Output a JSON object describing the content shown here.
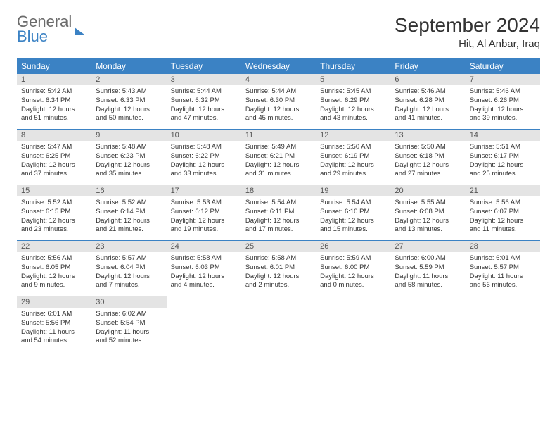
{
  "logo": {
    "line1": "General",
    "line2": "Blue"
  },
  "title": "September 2024",
  "location": "Hit, Al Anbar, Iraq",
  "colors": {
    "header_bg": "#3b82c4",
    "header_fg": "#ffffff",
    "daynum_bg": "#e4e4e4",
    "row_border": "#3b82c4"
  },
  "weekdays": [
    "Sunday",
    "Monday",
    "Tuesday",
    "Wednesday",
    "Thursday",
    "Friday",
    "Saturday"
  ],
  "days": [
    {
      "n": "1",
      "sunrise": "5:42 AM",
      "sunset": "6:34 PM",
      "dl": "12 hours and 51 minutes."
    },
    {
      "n": "2",
      "sunrise": "5:43 AM",
      "sunset": "6:33 PM",
      "dl": "12 hours and 50 minutes."
    },
    {
      "n": "3",
      "sunrise": "5:44 AM",
      "sunset": "6:32 PM",
      "dl": "12 hours and 47 minutes."
    },
    {
      "n": "4",
      "sunrise": "5:44 AM",
      "sunset": "6:30 PM",
      "dl": "12 hours and 45 minutes."
    },
    {
      "n": "5",
      "sunrise": "5:45 AM",
      "sunset": "6:29 PM",
      "dl": "12 hours and 43 minutes."
    },
    {
      "n": "6",
      "sunrise": "5:46 AM",
      "sunset": "6:28 PM",
      "dl": "12 hours and 41 minutes."
    },
    {
      "n": "7",
      "sunrise": "5:46 AM",
      "sunset": "6:26 PM",
      "dl": "12 hours and 39 minutes."
    },
    {
      "n": "8",
      "sunrise": "5:47 AM",
      "sunset": "6:25 PM",
      "dl": "12 hours and 37 minutes."
    },
    {
      "n": "9",
      "sunrise": "5:48 AM",
      "sunset": "6:23 PM",
      "dl": "12 hours and 35 minutes."
    },
    {
      "n": "10",
      "sunrise": "5:48 AM",
      "sunset": "6:22 PM",
      "dl": "12 hours and 33 minutes."
    },
    {
      "n": "11",
      "sunrise": "5:49 AM",
      "sunset": "6:21 PM",
      "dl": "12 hours and 31 minutes."
    },
    {
      "n": "12",
      "sunrise": "5:50 AM",
      "sunset": "6:19 PM",
      "dl": "12 hours and 29 minutes."
    },
    {
      "n": "13",
      "sunrise": "5:50 AM",
      "sunset": "6:18 PM",
      "dl": "12 hours and 27 minutes."
    },
    {
      "n": "14",
      "sunrise": "5:51 AM",
      "sunset": "6:17 PM",
      "dl": "12 hours and 25 minutes."
    },
    {
      "n": "15",
      "sunrise": "5:52 AM",
      "sunset": "6:15 PM",
      "dl": "12 hours and 23 minutes."
    },
    {
      "n": "16",
      "sunrise": "5:52 AM",
      "sunset": "6:14 PM",
      "dl": "12 hours and 21 minutes."
    },
    {
      "n": "17",
      "sunrise": "5:53 AM",
      "sunset": "6:12 PM",
      "dl": "12 hours and 19 minutes."
    },
    {
      "n": "18",
      "sunrise": "5:54 AM",
      "sunset": "6:11 PM",
      "dl": "12 hours and 17 minutes."
    },
    {
      "n": "19",
      "sunrise": "5:54 AM",
      "sunset": "6:10 PM",
      "dl": "12 hours and 15 minutes."
    },
    {
      "n": "20",
      "sunrise": "5:55 AM",
      "sunset": "6:08 PM",
      "dl": "12 hours and 13 minutes."
    },
    {
      "n": "21",
      "sunrise": "5:56 AM",
      "sunset": "6:07 PM",
      "dl": "12 hours and 11 minutes."
    },
    {
      "n": "22",
      "sunrise": "5:56 AM",
      "sunset": "6:05 PM",
      "dl": "12 hours and 9 minutes."
    },
    {
      "n": "23",
      "sunrise": "5:57 AM",
      "sunset": "6:04 PM",
      "dl": "12 hours and 7 minutes."
    },
    {
      "n": "24",
      "sunrise": "5:58 AM",
      "sunset": "6:03 PM",
      "dl": "12 hours and 4 minutes."
    },
    {
      "n": "25",
      "sunrise": "5:58 AM",
      "sunset": "6:01 PM",
      "dl": "12 hours and 2 minutes."
    },
    {
      "n": "26",
      "sunrise": "5:59 AM",
      "sunset": "6:00 PM",
      "dl": "12 hours and 0 minutes."
    },
    {
      "n": "27",
      "sunrise": "6:00 AM",
      "sunset": "5:59 PM",
      "dl": "11 hours and 58 minutes."
    },
    {
      "n": "28",
      "sunrise": "6:01 AM",
      "sunset": "5:57 PM",
      "dl": "11 hours and 56 minutes."
    },
    {
      "n": "29",
      "sunrise": "6:01 AM",
      "sunset": "5:56 PM",
      "dl": "11 hours and 54 minutes."
    },
    {
      "n": "30",
      "sunrise": "6:02 AM",
      "sunset": "5:54 PM",
      "dl": "11 hours and 52 minutes."
    }
  ],
  "labels": {
    "sunrise": "Sunrise:",
    "sunset": "Sunset:",
    "daylight": "Daylight:"
  }
}
